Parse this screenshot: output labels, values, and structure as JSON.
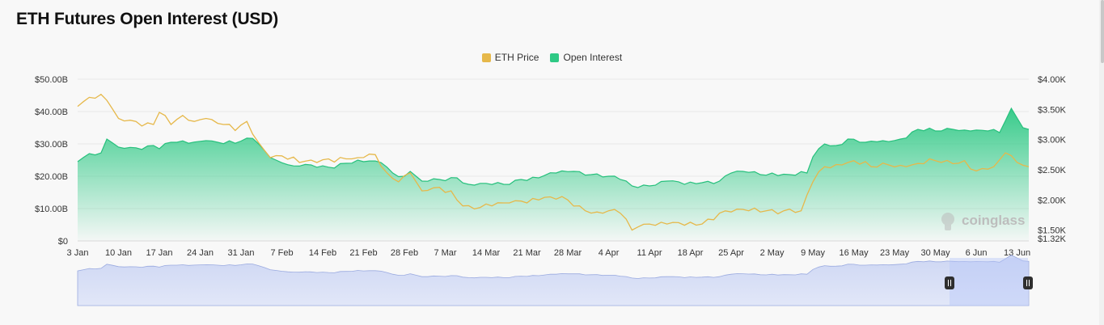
{
  "title": "ETH Futures Open Interest (USD)",
  "watermark": "coinglass",
  "chart_data": {
    "type": "area",
    "legend": [
      {
        "name": "ETH Price",
        "color": "#e6b84a"
      },
      {
        "name": "Open Interest",
        "color": "#2ec985"
      }
    ],
    "y_left": {
      "ticks": [
        "$0",
        "$10.00B",
        "$20.00B",
        "$30.00B",
        "$40.00B",
        "$50.00B"
      ],
      "range": [
        0,
        50
      ],
      "unit": "B USD"
    },
    "y_right": {
      "ticks": [
        "$1.32K",
        "$1.50K",
        "$2.00K",
        "$2.50K",
        "$3.00K",
        "$3.50K",
        "$4.00K"
      ],
      "range": [
        1.32,
        4.0
      ],
      "unit": "K USD"
    },
    "x_ticks": [
      "3 Jan",
      "10 Jan",
      "17 Jan",
      "24 Jan",
      "31 Jan",
      "7 Feb",
      "14 Feb",
      "21 Feb",
      "28 Feb",
      "7 Mar",
      "14 Mar",
      "21 Mar",
      "28 Mar",
      "4 Apr",
      "11 Apr",
      "18 Apr",
      "25 Apr",
      "2 May",
      "9 May",
      "16 May",
      "23 May",
      "30 May",
      "6 Jun",
      "13 Jun"
    ],
    "x_start": "3 Jan",
    "x_end": "15 Jun",
    "series": [
      {
        "name": "Open Interest",
        "unit": "B USD",
        "points": [
          [
            "3 Jan",
            24.5
          ],
          [
            "5 Jan",
            27
          ],
          [
            "7 Jan",
            27.2
          ],
          [
            "8 Jan",
            31.5
          ],
          [
            "10 Jan",
            29
          ],
          [
            "13 Jan",
            28.8
          ],
          [
            "16 Jan",
            29.5
          ],
          [
            "17 Jan",
            28.5
          ],
          [
            "19 Jan",
            30.5
          ],
          [
            "22 Jan",
            30.2
          ],
          [
            "25 Jan",
            31
          ],
          [
            "27 Jan",
            30.5
          ],
          [
            "30 Jan",
            30.2
          ],
          [
            "2 Feb",
            31.7
          ],
          [
            "4 Feb",
            28
          ],
          [
            "6 Feb",
            25
          ],
          [
            "9 Feb",
            23.2
          ],
          [
            "12 Feb",
            23.5
          ],
          [
            "15 Feb",
            22.8
          ],
          [
            "18 Feb",
            24
          ],
          [
            "21 Feb",
            24.5
          ],
          [
            "24 Feb",
            24.2
          ],
          [
            "26 Feb",
            21
          ],
          [
            "28 Feb",
            20
          ],
          [
            "1 Mar",
            21.5
          ],
          [
            "3 Mar",
            18.5
          ],
          [
            "6 Mar",
            19
          ],
          [
            "9 Mar",
            19.5
          ],
          [
            "11 Mar",
            17.5
          ],
          [
            "14 Mar",
            17.8
          ],
          [
            "17 Mar",
            17.5
          ],
          [
            "20 Mar",
            19
          ],
          [
            "23 Mar",
            19.5
          ],
          [
            "26 Mar",
            21
          ],
          [
            "29 Mar",
            21.5
          ],
          [
            "1 Apr",
            20.5
          ],
          [
            "4 Apr",
            20
          ],
          [
            "6 Apr",
            19
          ],
          [
            "8 Apr",
            17
          ],
          [
            "11 Apr",
            17
          ],
          [
            "14 Apr",
            18.5
          ],
          [
            "17 Apr",
            17.5
          ],
          [
            "20 Apr",
            18
          ],
          [
            "23 Apr",
            18.5
          ],
          [
            "25 Apr",
            21
          ],
          [
            "28 Apr",
            21.2
          ],
          [
            "30 Apr",
            20.5
          ],
          [
            "2 May",
            21
          ],
          [
            "5 May",
            20.5
          ],
          [
            "8 May",
            21
          ],
          [
            "9 May",
            26
          ],
          [
            "11 May",
            30
          ],
          [
            "13 May",
            29.5
          ],
          [
            "15 May",
            31.5
          ],
          [
            "18 May",
            30.5
          ],
          [
            "21 May",
            31
          ],
          [
            "24 May",
            31.5
          ],
          [
            "27 May",
            34.5
          ],
          [
            "30 May",
            34
          ],
          [
            "2 Jun",
            34.5
          ],
          [
            "5 Jun",
            34
          ],
          [
            "8 Jun",
            34
          ],
          [
            "10 Jun",
            33.5
          ],
          [
            "12 Jun",
            41
          ],
          [
            "13 Jun",
            38
          ],
          [
            "14 Jun",
            35
          ],
          [
            "15 Jun",
            34.5
          ]
        ]
      },
      {
        "name": "ETH Price",
        "unit": "K USD",
        "points": [
          [
            "3 Jan",
            3.55
          ],
          [
            "5 Jan",
            3.7
          ],
          [
            "7 Jan",
            3.75
          ],
          [
            "8 Jan",
            3.65
          ],
          [
            "10 Jan",
            3.35
          ],
          [
            "13 Jan",
            3.3
          ],
          [
            "16 Jan",
            3.25
          ],
          [
            "17 Jan",
            3.45
          ],
          [
            "19 Jan",
            3.25
          ],
          [
            "21 Jan",
            3.4
          ],
          [
            "23 Jan",
            3.3
          ],
          [
            "25 Jan",
            3.35
          ],
          [
            "28 Jan",
            3.25
          ],
          [
            "30 Jan",
            3.15
          ],
          [
            "1 Feb",
            3.3
          ],
          [
            "3 Feb",
            2.95
          ],
          [
            "5 Feb",
            2.7
          ],
          [
            "7 Feb",
            2.73
          ],
          [
            "10 Feb",
            2.62
          ],
          [
            "13 Feb",
            2.62
          ],
          [
            "15 Feb",
            2.68
          ],
          [
            "18 Feb",
            2.68
          ],
          [
            "20 Feb",
            2.7
          ],
          [
            "23 Feb",
            2.75
          ],
          [
            "25 Feb",
            2.45
          ],
          [
            "27 Feb",
            2.3
          ],
          [
            "1 Mar",
            2.45
          ],
          [
            "3 Mar",
            2.15
          ],
          [
            "5 Mar",
            2.2
          ],
          [
            "8 Mar",
            2.15
          ],
          [
            "10 Mar",
            1.9
          ],
          [
            "12 Mar",
            1.85
          ],
          [
            "15 Mar",
            1.9
          ],
          [
            "18 Mar",
            1.95
          ],
          [
            "20 Mar",
            1.98
          ],
          [
            "23 Mar",
            2.0
          ],
          [
            "25 Mar",
            2.05
          ],
          [
            "28 Mar",
            2.0
          ],
          [
            "31 Mar",
            1.82
          ],
          [
            "2 Apr",
            1.8
          ],
          [
            "4 Apr",
            1.82
          ],
          [
            "6 Apr",
            1.78
          ],
          [
            "8 Apr",
            1.5
          ],
          [
            "9 Apr",
            1.55
          ],
          [
            "11 Apr",
            1.6
          ],
          [
            "14 Apr",
            1.6
          ],
          [
            "17 Apr",
            1.58
          ],
          [
            "20 Apr",
            1.6
          ],
          [
            "23 Apr",
            1.78
          ],
          [
            "25 Apr",
            1.8
          ],
          [
            "28 Apr",
            1.82
          ],
          [
            "1 May",
            1.82
          ],
          [
            "4 May",
            1.82
          ],
          [
            "7 May",
            1.82
          ],
          [
            "9 May",
            2.3
          ],
          [
            "11 May",
            2.55
          ],
          [
            "14 May",
            2.58
          ],
          [
            "16 May",
            2.65
          ],
          [
            "19 May",
            2.55
          ],
          [
            "22 May",
            2.58
          ],
          [
            "25 May",
            2.55
          ],
          [
            "28 May",
            2.6
          ],
          [
            "30 May",
            2.65
          ],
          [
            "2 Jun",
            2.6
          ],
          [
            "4 Jun",
            2.65
          ],
          [
            "6 Jun",
            2.48
          ],
          [
            "9 Jun",
            2.55
          ],
          [
            "11 Jun",
            2.78
          ],
          [
            "13 Jun",
            2.62
          ],
          [
            "15 Jun",
            2.55
          ]
        ]
      }
    ],
    "grid": true,
    "legend_position": "top-center"
  }
}
